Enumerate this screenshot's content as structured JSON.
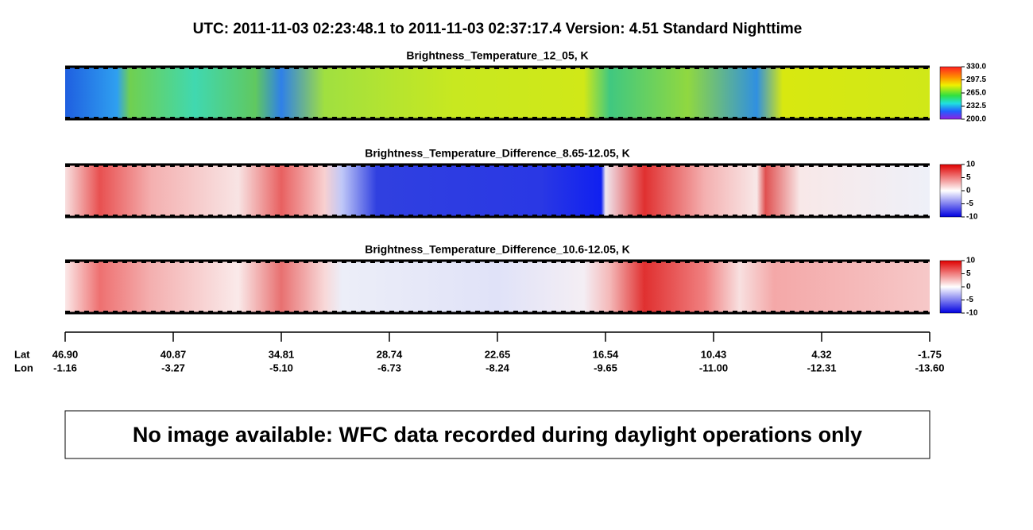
{
  "header": {
    "title": "UTC:  2011-11-03   02:23:48.1  to  2011-11-03   02:37:17.4    Version: 4.51  Standard Nighttime"
  },
  "panels": [
    {
      "title": "Brightness_Temperature_12_05, K",
      "colorbar_ticks": [
        "330.0",
        "297.5",
        "265.0",
        "232.5",
        "200.0"
      ]
    },
    {
      "title": "Brightness_Temperature_Difference_8.65-12.05, K",
      "colorbar_ticks": [
        "10",
        "5",
        "0",
        "-5",
        "-10"
      ]
    },
    {
      "title": "Brightness_Temperature_Difference_10.6-12.05, K",
      "colorbar_ticks": [
        "10",
        "5",
        "0",
        "-5",
        "-10"
      ]
    }
  ],
  "axis": {
    "lat_label": "Lat",
    "lon_label": "Lon",
    "lat": [
      "46.90",
      "40.87",
      "34.81",
      "28.74",
      "22.65",
      "16.54",
      "10.43",
      "4.32",
      "-1.75"
    ],
    "lon": [
      "-1.16",
      "-3.27",
      "-5.10",
      "-6.73",
      "-8.24",
      "-9.65",
      "-11.00",
      "-12.31",
      "-13.60"
    ]
  },
  "message": "No image available: WFC data recorded during daylight operations only"
}
